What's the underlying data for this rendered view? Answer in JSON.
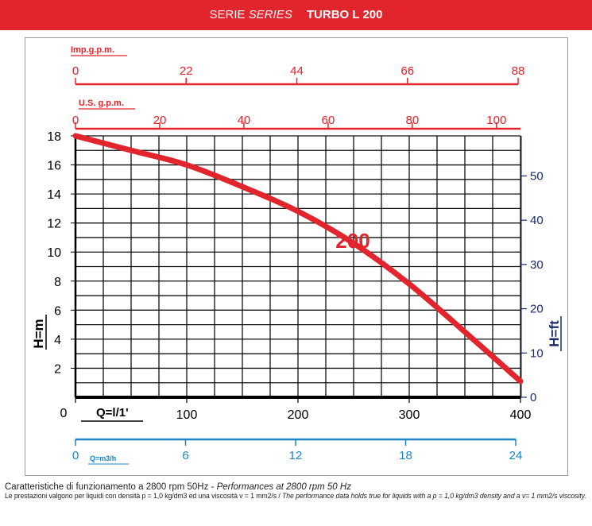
{
  "banner": {
    "prefix": "SERIE",
    "series_word": "SERIES",
    "model": "TURBO L  200"
  },
  "colors": {
    "banner": "#e2242c",
    "curve": "#e2242c",
    "blue": "#1a85c6",
    "dark_blue": "#1b2a6b",
    "grid": "#111111"
  },
  "caption": {
    "line1_it": "Caratteristiche di funzionamento a 2800 rpm 50Hz - ",
    "line1_en": "Performances at 2800 rpm 50 Hz",
    "line2_it": "Le prestazioni valgono per liquidi con densità p = 1,0 kg/dm3 ed una viscosità  v = 1 mm2/s / ",
    "line2_en": "The performance data holds true for liquids with a  p = 1,0 kg/dm3 density and a  v= 1 mm2/s viscosity."
  },
  "chart_data": {
    "type": "line",
    "series": [
      {
        "name": "200",
        "x": [
          0,
          50,
          100,
          150,
          200,
          250,
          300,
          350,
          400
        ],
        "y": [
          18,
          17,
          16,
          14.5,
          12.8,
          10.6,
          7.8,
          4.5,
          1.1
        ]
      }
    ],
    "xlim": [
      0,
      400
    ],
    "ylim": [
      0,
      18
    ],
    "grid": true,
    "axes": {
      "bottom": {
        "label": "Q=l/1'",
        "zero_label": "0",
        "ticks": [
          0,
          100,
          200,
          300,
          400
        ],
        "tick_labels": [
          "",
          "100",
          "200",
          "300",
          "400"
        ]
      },
      "left": {
        "label": "H=m",
        "zero_label": "0",
        "ticks": [
          2,
          4,
          6,
          8,
          10,
          12,
          14,
          16,
          18
        ],
        "tick_labels": [
          "2",
          "4",
          "6",
          "8",
          "10",
          "12",
          "14",
          "16",
          "18"
        ]
      },
      "right": {
        "label": "H=ft",
        "ticks": [
          0,
          10,
          20,
          30,
          40,
          50
        ],
        "tick_labels": [
          "0",
          "10",
          "20",
          "30",
          "40",
          "50"
        ],
        "max": 59.05
      },
      "top_imp": {
        "label": "Imp.g.p.m.",
        "ticks": [
          0,
          22,
          44,
          66,
          88
        ],
        "tick_labels": [
          "0",
          "22",
          "44",
          "66",
          "88"
        ],
        "max": 88
      },
      "top_us": {
        "label": "U.S. g.p.m.",
        "ticks": [
          0,
          20,
          40,
          60,
          80,
          100
        ],
        "tick_labels": [
          "0",
          "20",
          "40",
          "60",
          "80",
          "100"
        ],
        "max": 105.7
      },
      "bottom_m3h": {
        "label": "Q=m3/h",
        "ticks": [
          0,
          6,
          12,
          18,
          24
        ],
        "tick_labels": [
          "0",
          "6",
          "12",
          "18",
          "24"
        ],
        "max": 24
      }
    }
  }
}
